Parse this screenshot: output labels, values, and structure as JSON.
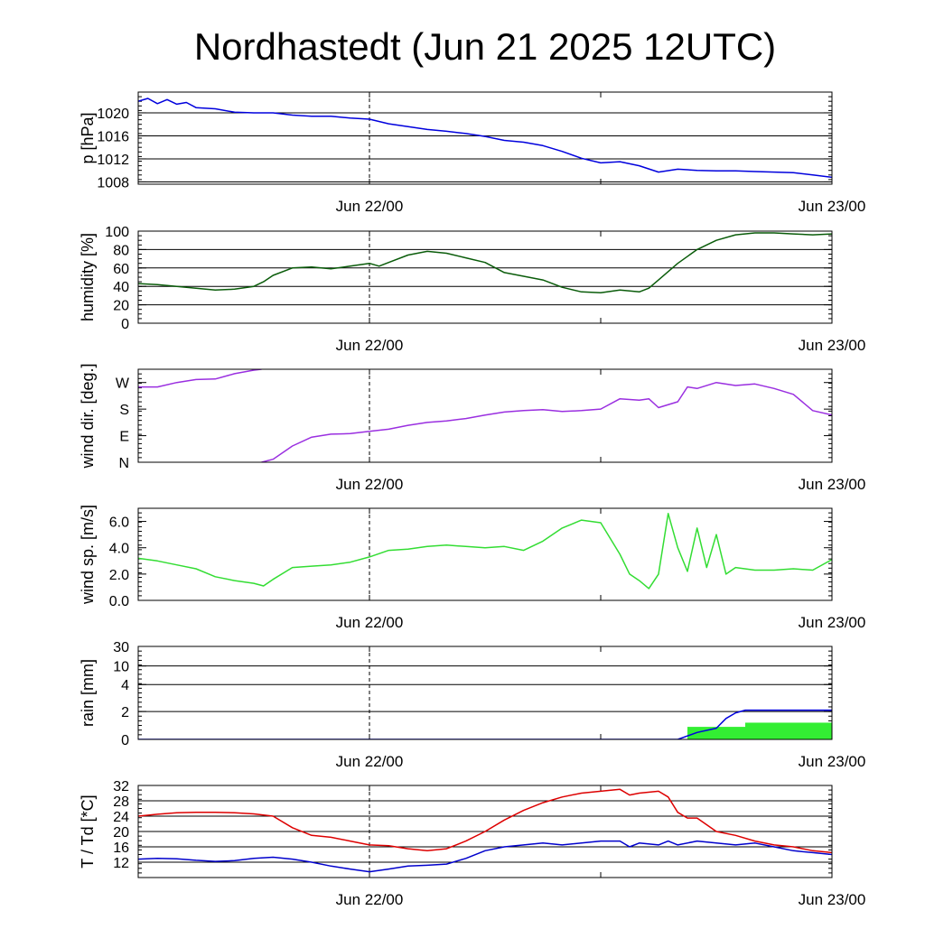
{
  "page": {
    "title": "Nordhastedt (Jun 21 2025 12UTC)"
  },
  "colors": {
    "pressure": "#0000dd",
    "humidity": "#0a5c0a",
    "wind_dir": "#9a2fe0",
    "wind_speed": "#33dd33",
    "rain_accum": "#0000dd",
    "rain_bar": "#33ee33",
    "temperature": "#dd0000",
    "dewpoint": "#0000cc",
    "grid": "#000000"
  },
  "x_axis": {
    "tick_labels": [
      "Jun 22/00",
      "Jun 23/00"
    ],
    "tick_hours": [
      12,
      36
    ],
    "range_hours": [
      0,
      36
    ],
    "dashed_marker_hour": 12
  },
  "chart_data": [
    {
      "type": "line",
      "ylabel": "p [hPa]",
      "ylim": [
        1007.6,
        1023.6
      ],
      "yticks": [
        1008,
        1012,
        1016,
        1020
      ],
      "tick_labels": [
        "1008",
        "1012",
        "1016",
        "1020"
      ],
      "grid": true,
      "series": [
        {
          "color_key": "pressure",
          "x": [
            0,
            0.5,
            1,
            1.5,
            2,
            2.5,
            3,
            4,
            5,
            6,
            7,
            8,
            9,
            10,
            11,
            12,
            13,
            14,
            15,
            16,
            17,
            18,
            19,
            20,
            21,
            22,
            23,
            24,
            25,
            26,
            27,
            28,
            29,
            30,
            31,
            32,
            33,
            34,
            35,
            36
          ],
          "y": [
            1022,
            1022.5,
            1021.6,
            1022.3,
            1021.5,
            1021.8,
            1020.9,
            1020.7,
            1020.1,
            1020.0,
            1020.0,
            1019.6,
            1019.4,
            1019.4,
            1019.1,
            1018.9,
            1018.1,
            1017.6,
            1017.1,
            1016.8,
            1016.4,
            1015.9,
            1015.2,
            1014.9,
            1014.3,
            1013.3,
            1012.1,
            1011.3,
            1011.5,
            1010.8,
            1009.7,
            1010.2,
            1010.0,
            1009.9,
            1009.9,
            1009.8,
            1009.7,
            1009.6,
            1009.2,
            1008.8
          ]
        }
      ]
    },
    {
      "type": "line",
      "ylabel": "humidity [%]",
      "ylim": [
        0,
        100
      ],
      "yticks": [
        0,
        20,
        40,
        60,
        80,
        100
      ],
      "tick_labels": [
        "0",
        "20",
        "40",
        "60",
        "80",
        "100"
      ],
      "grid": true,
      "series": [
        {
          "color_key": "humidity",
          "x": [
            0,
            1,
            2,
            3,
            4,
            5,
            6,
            6.5,
            7,
            8,
            9,
            10,
            11,
            12,
            12.5,
            13,
            14,
            15,
            16,
            17,
            18,
            19,
            20,
            21,
            22,
            23,
            24,
            25,
            26,
            26.5,
            27,
            28,
            29,
            30,
            31,
            32,
            33,
            34,
            35,
            36
          ],
          "y": [
            43,
            42,
            40,
            38,
            36,
            37,
            40,
            45,
            52,
            60,
            61,
            59,
            62,
            65,
            62,
            66,
            74,
            78,
            76,
            71,
            66,
            55,
            51,
            47,
            39,
            34,
            33,
            36,
            34,
            38,
            47,
            65,
            80,
            90,
            96,
            98,
            98,
            97,
            96,
            97
          ]
        }
      ]
    },
    {
      "type": "line",
      "ylabel": "wind dir. [deg.]",
      "ylim": [
        0,
        315
      ],
      "yticks": [
        0,
        90,
        180,
        270
      ],
      "tick_labels": [
        "N",
        "E",
        "S",
        "W"
      ],
      "grid": false,
      "series": [
        {
          "color_key": "wind_dir",
          "segments": [
            {
              "x": [
                0,
                1,
                2,
                3,
                4,
                5,
                6,
                6.4
              ],
              "y": [
                255,
                255,
                270,
                280,
                282,
                300,
                312,
                315
              ]
            },
            {
              "x": [
                6.4,
                7,
                8,
                9,
                10,
                11,
                12,
                13,
                14,
                15,
                16,
                17,
                18,
                19,
                20,
                21,
                22,
                23,
                24,
                25,
                26,
                26.5,
                27,
                28,
                28.5,
                29,
                30,
                31,
                32,
                33,
                34,
                35,
                36
              ],
              "y": [
                0,
                10,
                55,
                85,
                95,
                97,
                105,
                112,
                125,
                135,
                140,
                148,
                160,
                170,
                175,
                178,
                172,
                175,
                180,
                215,
                210,
                215,
                185,
                205,
                255,
                250,
                270,
                260,
                265,
                250,
                230,
                175,
                160
              ]
            }
          ]
        }
      ]
    },
    {
      "type": "line",
      "ylabel": "wind sp. [m/s]",
      "ylim": [
        0,
        7
      ],
      "yticks": [
        0,
        2,
        4,
        6
      ],
      "tick_labels": [
        "0.0",
        "2.0",
        "4.0",
        "6.0"
      ],
      "grid": false,
      "series": [
        {
          "color_key": "wind_speed",
          "x": [
            0,
            1,
            2,
            3,
            4,
            5,
            6,
            6.5,
            7,
            8,
            9,
            10,
            11,
            12,
            13,
            14,
            15,
            16,
            17,
            18,
            19,
            20,
            21,
            22,
            23,
            24,
            25,
            25.5,
            26,
            26.5,
            27,
            27.5,
            28,
            28.5,
            29,
            29.5,
            30,
            30.5,
            31,
            32,
            33,
            34,
            35,
            36
          ],
          "y": [
            3.2,
            3.0,
            2.7,
            2.4,
            1.8,
            1.5,
            1.3,
            1.1,
            1.6,
            2.5,
            2.6,
            2.7,
            2.9,
            3.3,
            3.8,
            3.9,
            4.1,
            4.2,
            4.1,
            4.0,
            4.1,
            3.8,
            4.5,
            5.5,
            6.1,
            5.9,
            3.5,
            2.0,
            1.5,
            0.9,
            2.0,
            6.6,
            4.0,
            2.2,
            5.5,
            2.5,
            5.0,
            2.0,
            2.5,
            2.3,
            2.3,
            2.4,
            2.3,
            3.1
          ]
        }
      ]
    },
    {
      "type": "area",
      "ylabel": "rain [mm]",
      "yticks": [
        0,
        2,
        4,
        10,
        30
      ],
      "tick_labels": [
        "0",
        "2",
        "4",
        "10",
        "30"
      ],
      "grid": true,
      "bars": [
        {
          "x0": 28.5,
          "x1": 31.5,
          "y": 0.9
        },
        {
          "x0": 31.5,
          "x1": 36,
          "y": 1.2
        }
      ],
      "series": [
        {
          "color_key": "rain_accum",
          "x": [
            0,
            27,
            28,
            29,
            30,
            30.5,
            31,
            31.5,
            36
          ],
          "y": [
            0,
            0,
            0,
            0.5,
            0.8,
            1.5,
            1.9,
            2.1,
            2.1
          ]
        }
      ]
    },
    {
      "type": "line",
      "ylabel": "T / Td [*C]",
      "ylim": [
        8,
        32
      ],
      "yticks": [
        12,
        16,
        20,
        24,
        28,
        32
      ],
      "tick_labels": [
        "12",
        "16",
        "20",
        "24",
        "28",
        "32"
      ],
      "grid": true,
      "series": [
        {
          "color_key": "temperature",
          "x": [
            0,
            1,
            2,
            3,
            4,
            5,
            6,
            7,
            8,
            9,
            10,
            11,
            12,
            13,
            14,
            15,
            16,
            17,
            18,
            19,
            20,
            21,
            22,
            23,
            24,
            25,
            25.5,
            26,
            27,
            27.5,
            28,
            28.5,
            29,
            30,
            31,
            32,
            33,
            34,
            35,
            36
          ],
          "y": [
            24,
            24.5,
            24.9,
            25,
            25,
            24.9,
            24.6,
            24,
            21,
            19,
            18.5,
            17.5,
            16.5,
            16.3,
            15.5,
            15,
            15.5,
            17.5,
            20,
            23,
            25.5,
            27.5,
            29,
            30,
            30.5,
            31,
            29.5,
            30,
            30.5,
            29,
            25,
            23.5,
            23.5,
            20,
            19,
            17.5,
            16.5,
            16,
            15,
            14.5
          ]
        },
        {
          "color_key": "dewpoint",
          "x": [
            0,
            1,
            2,
            3,
            4,
            5,
            6,
            7,
            8,
            9,
            10,
            11,
            12,
            13,
            14,
            15,
            16,
            17,
            18,
            19,
            20,
            21,
            22,
            23,
            24,
            25,
            25.5,
            26,
            27,
            27.5,
            28,
            29,
            30,
            31,
            32,
            33,
            34,
            35,
            36
          ],
          "y": [
            12.8,
            13,
            12.9,
            12.5,
            12.2,
            12.4,
            13,
            13.3,
            12.8,
            12,
            11,
            10.2,
            9.5,
            10.2,
            11,
            11.2,
            11.5,
            13,
            15,
            16,
            16.5,
            17,
            16.5,
            17,
            17.5,
            17.5,
            16,
            17,
            16.5,
            17.5,
            16.5,
            17.5,
            17,
            16.5,
            17,
            16,
            15,
            14.5,
            14
          ]
        }
      ]
    }
  ]
}
